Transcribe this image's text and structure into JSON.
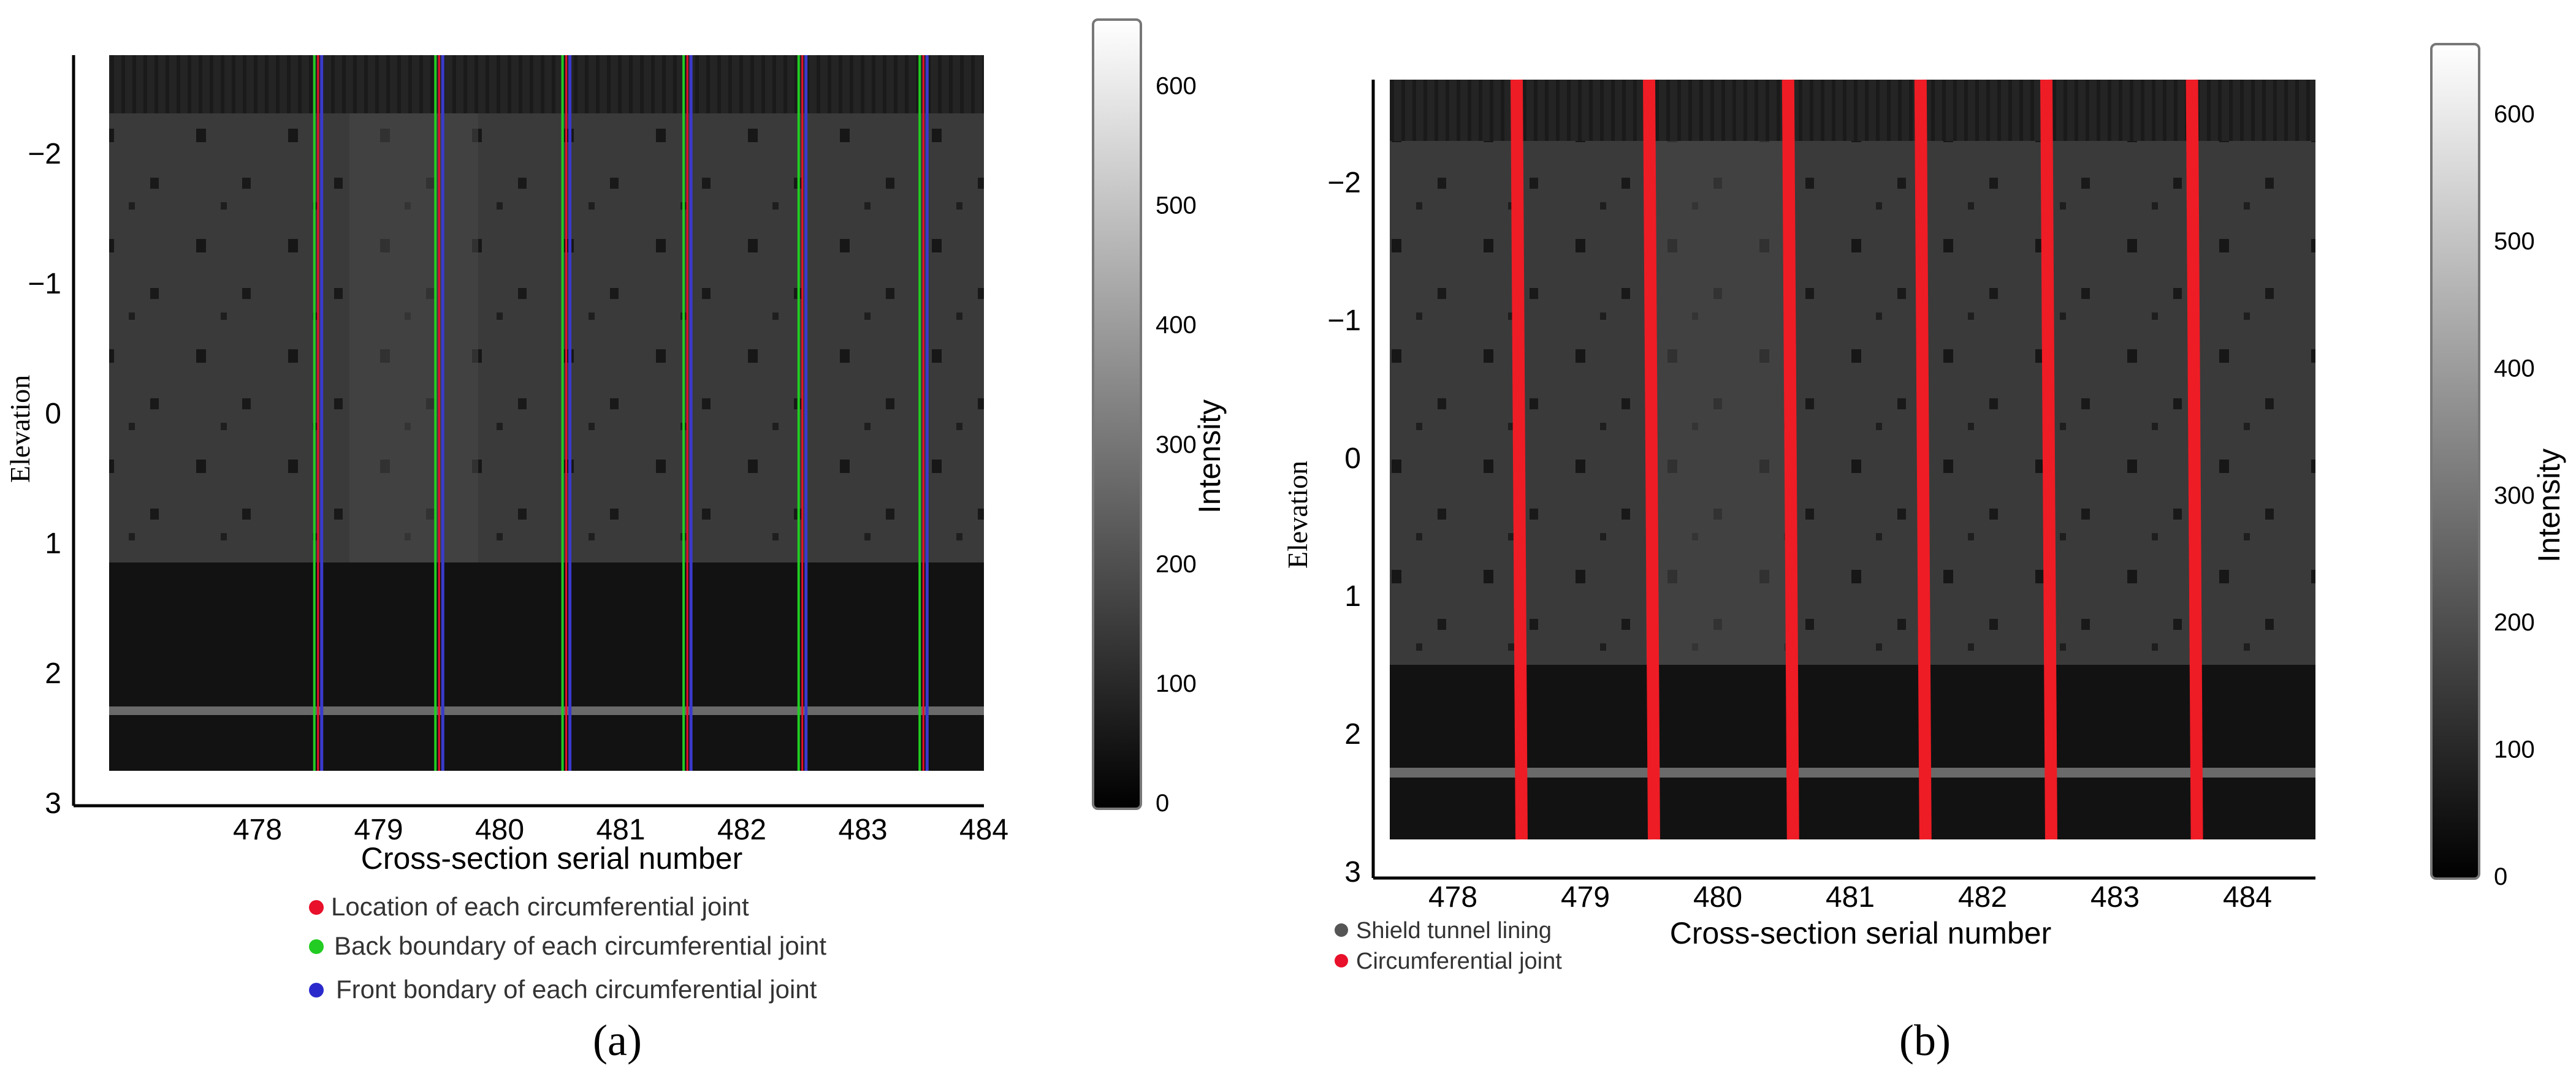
{
  "panels": [
    {
      "tag": "(a)",
      "chart_data": {
        "type": "heatmap",
        "xlabel": "Cross-section serial number",
        "ylabel": "Elevation",
        "x_ticks": [
          "478",
          "479",
          "480",
          "481",
          "482",
          "483",
          "484"
        ],
        "y_ticks": [
          "−2",
          "−1",
          "0",
          "1",
          "2",
          "3"
        ],
        "ylim": [
          3,
          -2.75
        ],
        "colorbar": {
          "label": "Intensity",
          "ticks": [
            "0",
            "100",
            "200",
            "300",
            "400",
            "500",
            "600"
          ],
          "range": [
            0,
            650
          ]
        },
        "joint_lines_x": [
          478.5,
          479.5,
          480.55,
          481.55,
          482.5,
          483.5
        ],
        "legend": [
          {
            "label": "Location of each circumferential joint",
            "color": "#e8102a"
          },
          {
            "label": "Back boundary of each circumferential joint",
            "color": "#22cc22"
          },
          {
            "label": "Front bondary of each circumferential joint",
            "color": "#2a2acc"
          }
        ]
      }
    },
    {
      "tag": "(b)",
      "chart_data": {
        "type": "heatmap",
        "xlabel": "Cross-section serial number",
        "ylabel": "Elevation",
        "x_ticks": [
          "478",
          "479",
          "480",
          "481",
          "482",
          "483",
          "484"
        ],
        "y_ticks": [
          "−2",
          "−1",
          "0",
          "1",
          "2",
          "3"
        ],
        "ylim": [
          3,
          -2.75
        ],
        "colorbar": {
          "label": "Intensity",
          "ticks": [
            "0",
            "100",
            "200",
            "300",
            "400",
            "500",
            "600"
          ],
          "range": [
            0,
            650
          ]
        },
        "joint_lines_x": [
          478.5,
          479.5,
          480.55,
          481.55,
          482.5,
          483.6
        ],
        "legend": [
          {
            "label": "Shield tunnel lining",
            "color": "#555555"
          },
          {
            "label": "Circumferential joint",
            "color": "#e8102a"
          }
        ]
      }
    }
  ]
}
